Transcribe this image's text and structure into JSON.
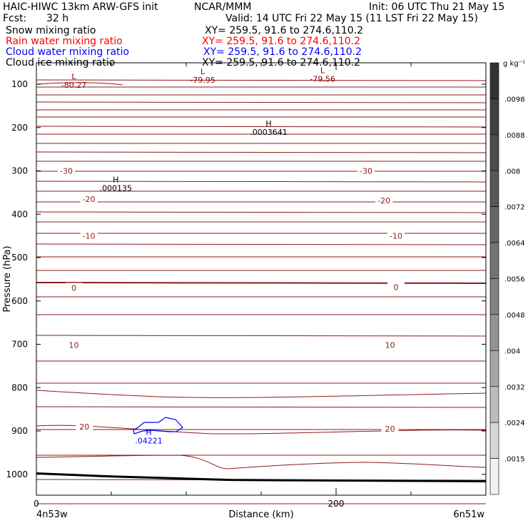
{
  "header": {
    "title": "HAIC-HIWC 13km ARW-GFS init",
    "org": "NCAR/MMM",
    "init": "Init: 06 UTC Thu 21 May 15",
    "fcst_label": "Fcst:",
    "fcst_value": "32 h",
    "valid": "Valid: 14 UTC Fri 22 May 15 (11 LST Fri 22 May 15)"
  },
  "fields": [
    {
      "name": "Snow mixing ratio",
      "xy": "XY= 259.5, 91.6 to 274.6,110.2",
      "color": "#000000"
    },
    {
      "name": "Rain water mixing ratio",
      "xy": "XY= 259.5, 91.6 to 274.6,110.2",
      "color": "#ff0000"
    },
    {
      "name": "Cloud water mixing ratio",
      "xy": "XY= 259.5, 91.6 to 274.6,110.2",
      "color": "#0000ff"
    },
    {
      "name": "Cloud ice mixing ratio",
      "xy": "XY= 259.5, 91.6 to 274.6,110.2",
      "color": "#000000"
    }
  ],
  "chart_data": {
    "type": "line",
    "xlabel": "Distance (km)",
    "ylabel": "Pressure (hPa)",
    "xlim": [
      0,
      300
    ],
    "ylim": [
      1050,
      60
    ],
    "x_ticks": [
      0,
      200
    ],
    "y_ticks": [
      100,
      200,
      300,
      400,
      500,
      600,
      700,
      800,
      900,
      1000
    ],
    "endpoint_left": "4n53w",
    "endpoint_right": "6n51w",
    "temperature_contour_labels": [
      {
        "text": "-30",
        "x": 20,
        "p": 300
      },
      {
        "text": "-30",
        "x": 220,
        "p": 300
      },
      {
        "text": "-20",
        "x": 35,
        "p": 365
      },
      {
        "text": "-20",
        "x": 232,
        "p": 368
      },
      {
        "text": "-10",
        "x": 35,
        "p": 450
      },
      {
        "text": "-10",
        "x": 240,
        "p": 450
      },
      {
        "text": "0",
        "x": 25,
        "p": 570
      },
      {
        "text": "0",
        "x": 240,
        "p": 568
      },
      {
        "text": "10",
        "x": 25,
        "p": 702
      },
      {
        "text": "10",
        "x": 236,
        "p": 702
      },
      {
        "text": "20",
        "x": 32,
        "p": 890
      },
      {
        "text": "20",
        "x": 236,
        "p": 895
      }
    ],
    "extrema": [
      {
        "kind": "L",
        "value": "-80.27",
        "x": 25,
        "p": 92,
        "color": "#8b0000"
      },
      {
        "kind": "L",
        "value": "-79.95",
        "x": 111,
        "p": 80,
        "color": "#8b0000"
      },
      {
        "kind": "L",
        "value": "-79.56",
        "x": 191,
        "p": 78,
        "color": "#8b0000"
      },
      {
        "kind": "H",
        "value": ".0003641",
        "x": 155,
        "p": 200,
        "color": "#000000"
      },
      {
        "kind": "H",
        "value": ".000135",
        "x": 53,
        "p": 330,
        "color": "#000000"
      },
      {
        "kind": "H",
        "value": ".04221",
        "x": 75,
        "p": 912,
        "color": "#0000ff"
      }
    ],
    "surface_pressure": {
      "x": [
        0,
        50,
        100,
        130,
        300
      ],
      "p": [
        998,
        1005,
        1010,
        1013,
        1016
      ]
    },
    "colorbar": {
      "units": "g kg⁻¹",
      "labels": [
        ".0098",
        ".0088",
        ".008",
        ".0072",
        ".0064",
        ".0056",
        ".0048",
        ".004",
        ".0032",
        ".0024",
        ".0015"
      ],
      "colors": [
        "#333333",
        "#404040",
        "#4c4c4c",
        "#585858",
        "#656565",
        "#737373",
        "#828282",
        "#939393",
        "#a6a6a6",
        "#bcbcbc",
        "#d6d6d6",
        "#f2f2f2"
      ]
    }
  }
}
